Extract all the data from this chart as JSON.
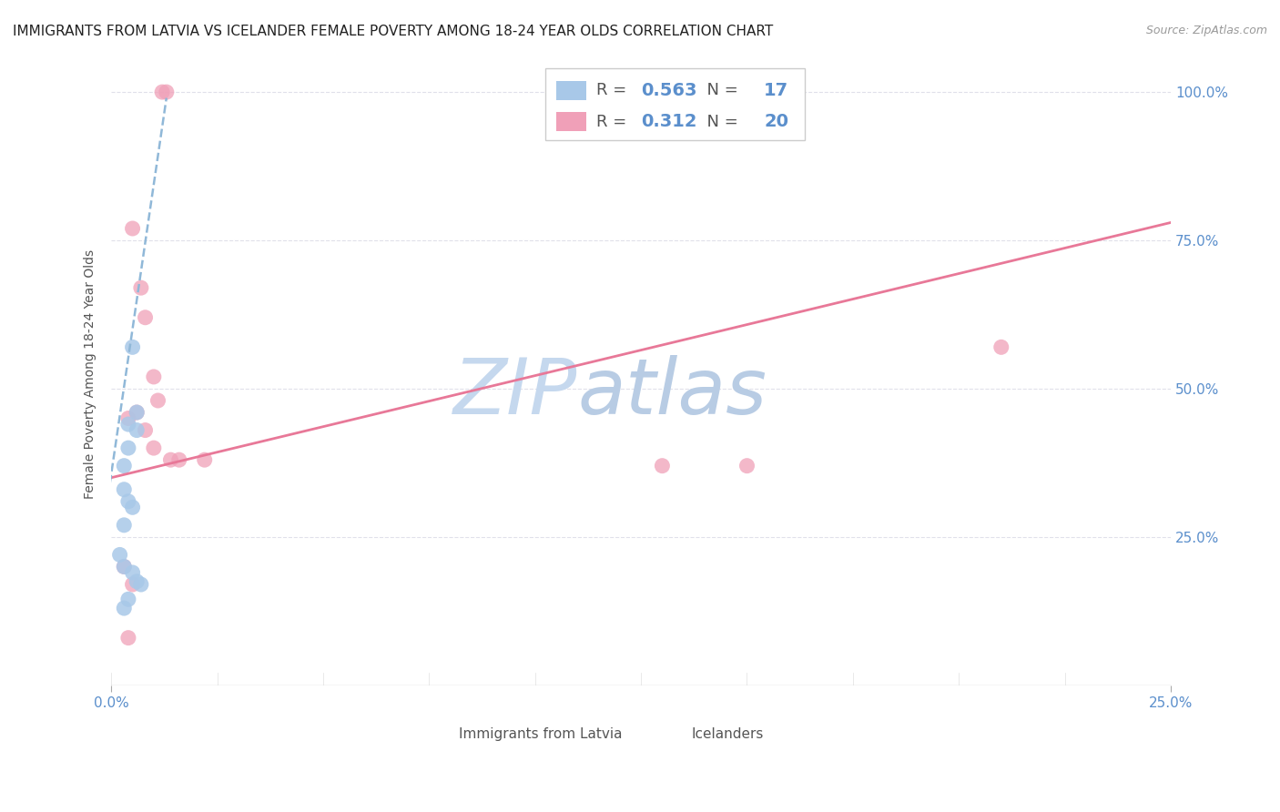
{
  "title": "IMMIGRANTS FROM LATVIA VS ICELANDER FEMALE POVERTY AMONG 18-24 YEAR OLDS CORRELATION CHART",
  "source": "Source: ZipAtlas.com",
  "ylabel": "Female Poverty Among 18-24 Year Olds",
  "xlim": [
    0.0,
    0.25
  ],
  "ylim": [
    0.0,
    1.05
  ],
  "xtick_positions": [
    0.0,
    0.25
  ],
  "xtick_labels": [
    "0.0%",
    "25.0%"
  ],
  "yticks_right": [
    0.0,
    0.25,
    0.5,
    0.75,
    1.0
  ],
  "ytick_labels_right": [
    "",
    "25.0%",
    "50.0%",
    "75.0%",
    "100.0%"
  ],
  "blue_r": "0.563",
  "blue_n": "17",
  "pink_r": "0.312",
  "pink_n": "20",
  "blue_scatter_x": [
    0.005,
    0.004,
    0.006,
    0.006,
    0.004,
    0.003,
    0.003,
    0.004,
    0.005,
    0.003,
    0.002,
    0.003,
    0.005,
    0.006,
    0.007,
    0.004,
    0.003
  ],
  "blue_scatter_y": [
    0.57,
    0.44,
    0.46,
    0.43,
    0.4,
    0.37,
    0.33,
    0.31,
    0.3,
    0.27,
    0.22,
    0.2,
    0.19,
    0.175,
    0.17,
    0.145,
    0.13
  ],
  "pink_scatter_x": [
    0.012,
    0.013,
    0.005,
    0.007,
    0.008,
    0.01,
    0.011,
    0.004,
    0.006,
    0.008,
    0.01,
    0.014,
    0.016,
    0.13,
    0.15,
    0.003,
    0.005,
    0.21,
    0.004,
    0.022
  ],
  "pink_scatter_y": [
    1.0,
    1.0,
    0.77,
    0.67,
    0.62,
    0.52,
    0.48,
    0.45,
    0.46,
    0.43,
    0.4,
    0.38,
    0.38,
    0.37,
    0.37,
    0.2,
    0.17,
    0.57,
    0.08,
    0.38
  ],
  "blue_line_x": [
    -0.002,
    0.013
  ],
  "blue_line_y": [
    0.26,
    0.99
  ],
  "pink_line_x": [
    0.0,
    0.25
  ],
  "pink_line_y": [
    0.35,
    0.78
  ],
  "watermark_zip": "ZIP",
  "watermark_atlas": "atlas",
  "watermark_color_zip": "#c5d8ee",
  "watermark_color_atlas": "#b8cce4",
  "bg_color": "#ffffff",
  "grid_color": "#e0e0ea",
  "blue_color": "#a8c8e8",
  "pink_color": "#f0a0b8",
  "blue_line_color": "#90b8d8",
  "pink_line_color": "#e87898",
  "title_fontsize": 11,
  "axis_label_fontsize": 10,
  "tick_fontsize": 11,
  "right_tick_color": "#5b8fcc",
  "bottom_tick_color": "#555555",
  "legend_label_blue": "Immigrants from Latvia",
  "legend_label_pink": "Icelanders"
}
